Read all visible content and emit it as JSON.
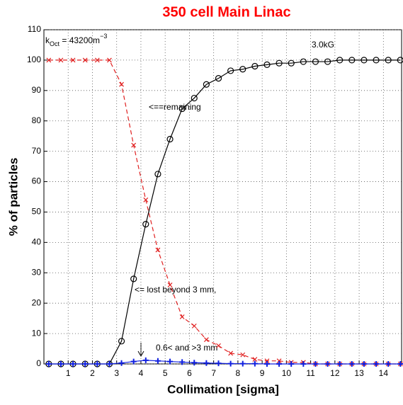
{
  "chart_data": {
    "type": "line",
    "title": "350 cell Main Linac",
    "xlabel": "Collimation [sigma]",
    "ylabel": "% of particles",
    "annotations": {
      "k_main": "k",
      "k_sub": "Oct",
      "k_rest": " = 43200m",
      "k_sup": "−3",
      "field": "3.0kG",
      "remaining": "<==remaining",
      "lost": "<= lost beyond 3 mm,",
      "partial": "0.6< and >3 mm"
    },
    "x": [
      0.2,
      0.7,
      1.2,
      1.7,
      2.2,
      2.7,
      3.2,
      3.7,
      4.2,
      4.7,
      5.2,
      5.7,
      6.2,
      6.7,
      7.2,
      7.7,
      8.2,
      8.7,
      9.2,
      9.7,
      10.2,
      10.7,
      11.2,
      11.7,
      12.2,
      12.7,
      13.2,
      13.7,
      14.2,
      14.7
    ],
    "series": [
      {
        "color": "#000000",
        "marker": "circle",
        "dash": false,
        "values": [
          0,
          0,
          0,
          0,
          0,
          0,
          7.5,
          28,
          46,
          62.5,
          74,
          84,
          87.5,
          92,
          94,
          96.5,
          97,
          98,
          98.5,
          99,
          99,
          99.5,
          99.5,
          99.5,
          100,
          100,
          100,
          100,
          100,
          100
        ]
      },
      {
        "color": "#e02020",
        "marker": "x",
        "dash": true,
        "values": [
          100,
          100,
          100,
          100,
          100,
          100,
          92,
          72,
          54,
          37.5,
          26,
          15.5,
          12.5,
          8,
          6,
          3.5,
          3,
          1.5,
          1,
          1,
          0.5,
          0.5,
          0,
          0,
          0,
          0,
          0,
          0,
          0,
          0
        ]
      },
      {
        "color": "#1020e0",
        "marker": "plus",
        "dash": false,
        "values": [
          0,
          0,
          0,
          0,
          0,
          0,
          0.3,
          0.8,
          1.2,
          1,
          0.8,
          0.6,
          0.4,
          0.3,
          0.2,
          0.1,
          0.1,
          0.1,
          0,
          0,
          0,
          0,
          0,
          0,
          0,
          0,
          0,
          0,
          0,
          0
        ]
      }
    ],
    "xlim": [
      0,
      14.75
    ],
    "ylim": [
      0,
      110
    ],
    "xticks": [
      1,
      2,
      3,
      4,
      5,
      6,
      7,
      8,
      9,
      10,
      11,
      12,
      13,
      14
    ],
    "yticks": [
      0,
      10,
      20,
      30,
      40,
      50,
      60,
      70,
      80,
      90,
      100,
      110
    ],
    "grid": true
  }
}
